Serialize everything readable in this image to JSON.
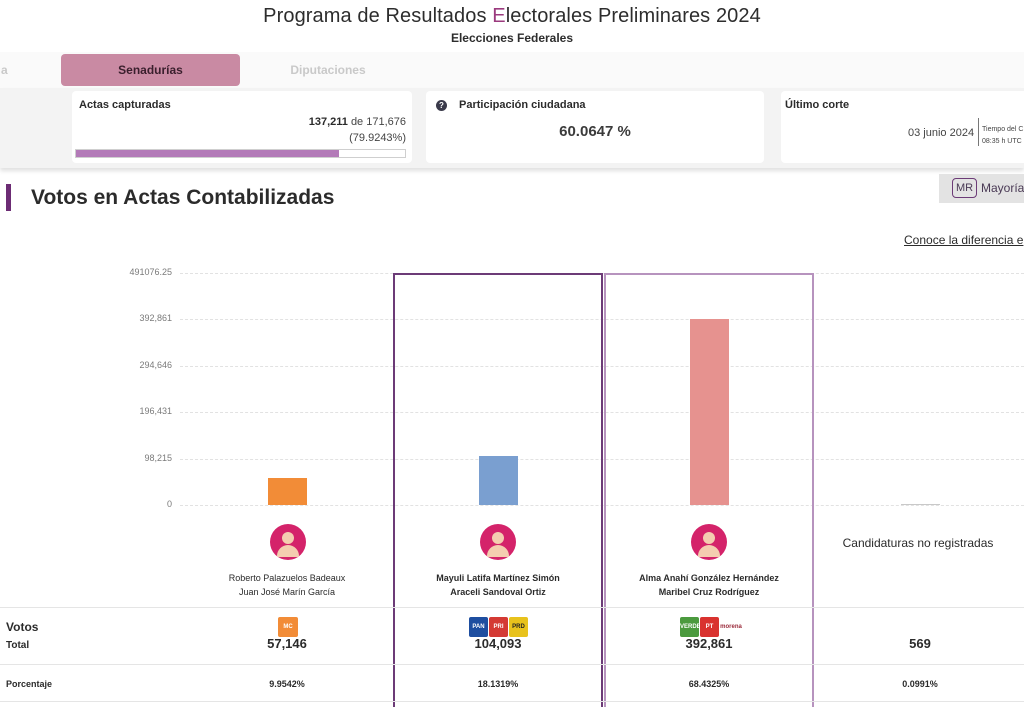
{
  "header": {
    "title_pre": "Programa de Resultados ",
    "title_accent": "E",
    "title_post": "lectorales Preliminares 2024",
    "subtitle": "Elecciones Federales"
  },
  "tabs": [
    {
      "label": "a",
      "active": false
    },
    {
      "label": "Senadurías",
      "active": true
    },
    {
      "label": "Diputaciones",
      "active": false
    }
  ],
  "summary": {
    "actas": {
      "label": "Actas capturadas",
      "captured": "137,211",
      "of_text": "de 171,676",
      "percent_text": "(79.9243%)",
      "progress_fraction": 0.799243
    },
    "participacion": {
      "help_icon": "?",
      "label": "Participación ciudadana",
      "value": "60.0647 %"
    },
    "corte": {
      "label": "Último corte",
      "date": "03 junio 2024",
      "tz_line1": "Tiempo del C",
      "tz_line2": "08:35 h UTC"
    }
  },
  "section": {
    "title": "Votos en Actas Contabilizadas",
    "mr_badge": "MR",
    "mr_label": "Mayoría",
    "diff_link": "Conoce la diferencia e"
  },
  "chart_data": {
    "type": "bar",
    "y_ticks": [
      "491076.25",
      "392,861",
      "294,646",
      "196,431",
      "98,215",
      "0"
    ],
    "y_tick_values": [
      491076.25,
      392861,
      294646,
      196431,
      98215,
      0
    ],
    "ylim": [
      0,
      491076.25
    ],
    "grid": true,
    "categories": [
      "Roberto Palazuelos Badeaux / Juan José Marín García",
      "Mayuli Latifa Martínez Simón / Araceli Sandoval Ortiz",
      "Alma Anahí González Hernández / Maribel Cruz Rodríguez",
      "Candidaturas no registradas"
    ],
    "values": [
      57146,
      104093,
      392861,
      569
    ],
    "colors": [
      "#f28c37",
      "#7a9fd0",
      "#e6928f",
      "#c9c9c9"
    ]
  },
  "candidates": [
    {
      "name1": "Roberto Palazuelos Badeaux",
      "name2": "Juan José Marín García",
      "votes": "57,146",
      "percent": "9.9542%",
      "avatar": "person-avatar"
    },
    {
      "name1": "Mayuli Latifa Martínez Simón",
      "name2": "Araceli Sandoval Ortiz",
      "votes": "104,093",
      "percent": "18.1319%",
      "avatar": "person-avatar"
    },
    {
      "name1": "Alma Anahí González Hernández",
      "name2": "Maribel Cruz Rodríguez",
      "votes": "392,861",
      "percent": "68.4325%",
      "avatar": "person-avatar"
    },
    {
      "name": "Candidaturas no registradas",
      "votes": "569",
      "percent": "0.0991%"
    }
  ],
  "logos": {
    "mc": [
      "MC"
    ],
    "frente": [
      "PAN",
      "PRI",
      "PRD"
    ],
    "morena": [
      "VERDE",
      "PT",
      "morena"
    ]
  },
  "rows": {
    "votos_label": "Votos",
    "total_label": "Total",
    "porcentaje_label": "Porcentaje"
  }
}
